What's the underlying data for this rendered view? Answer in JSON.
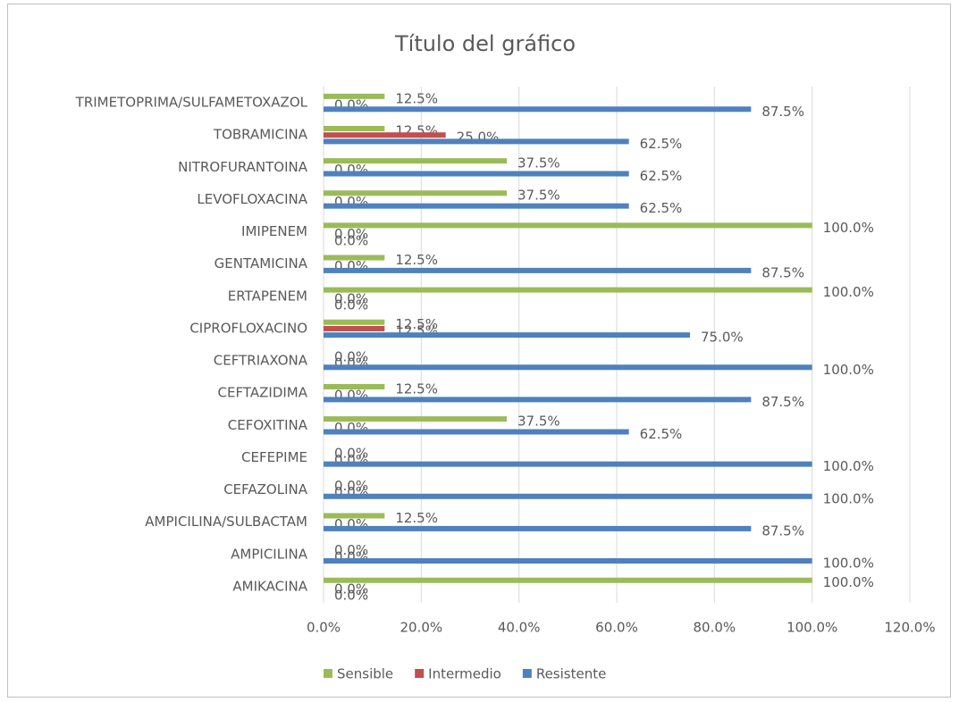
{
  "chart_data": {
    "type": "bar",
    "orientation": "horizontal",
    "title": "Título del gráfico",
    "categories": [
      "AMIKACINA",
      "AMPICILINA",
      "AMPICILINA/SULBACTAM",
      "CEFAZOLINA",
      "CEFEPIME",
      "CEFOXITINA",
      "CEFTAZIDIMA",
      "CEFTRIAXONA",
      "CIPROFLOXACINO",
      "ERTAPENEM",
      "GENTAMICINA",
      "IMIPENEM",
      "LEVOFLOXACINA",
      "NITROFURANTOINA",
      "TOBRAMICINA",
      "TRIMETOPRIMA/SULFAMETOXAZOL"
    ],
    "series": [
      {
        "name": "Sensible",
        "color": "#9bbb59",
        "values": [
          100,
          0,
          12.5,
          0,
          0,
          37.5,
          12.5,
          0,
          12.5,
          100,
          12.5,
          100,
          37.5,
          37.5,
          12.5,
          12.5
        ],
        "value_labels": [
          "100.0%",
          "0.0%",
          "12.5%",
          "0.0%",
          "0.0%",
          "37.5%",
          "12.5%",
          "0.0%",
          "12.5%",
          "100.0%",
          "12.5%",
          "100.0%",
          "37.5%",
          "37.5%",
          "12.5%",
          "12.5%"
        ]
      },
      {
        "name": "Intermedio",
        "color": "#c0504d",
        "values": [
          0,
          0,
          0,
          0,
          0,
          0,
          0,
          0,
          12.5,
          0,
          0,
          0,
          0,
          0,
          25,
          0
        ],
        "value_labels": [
          "0.0%",
          "0.0%",
          "0.0%",
          "0.0%",
          "0.0%",
          "0.0%",
          "0.0%",
          "0.0%",
          "12.5%",
          "0.0%",
          "0.0%",
          "0.0%",
          "0.0%",
          "0.0%",
          "25.0%",
          "0.0%"
        ]
      },
      {
        "name": "Resistente",
        "color": "#4f81bd",
        "values": [
          0,
          100,
          87.5,
          100,
          100,
          62.5,
          87.5,
          100,
          75,
          0,
          87.5,
          0,
          62.5,
          62.5,
          62.5,
          87.5
        ],
        "value_labels": [
          "0.0%",
          "100.0%",
          "87.5%",
          "100.0%",
          "100.0%",
          "62.5%",
          "87.5%",
          "100.0%",
          "75.0%",
          "0.0%",
          "87.5%",
          "0.0%",
          "62.5%",
          "62.5%",
          "62.5%",
          "87.5%"
        ]
      }
    ],
    "xlim": [
      0,
      120
    ],
    "xticks": [
      {
        "value": 0,
        "label": "0.0%"
      },
      {
        "value": 20,
        "label": "20.0%"
      },
      {
        "value": 40,
        "label": "40.0%"
      },
      {
        "value": 60,
        "label": "60.0%"
      },
      {
        "value": 80,
        "label": "80.0%"
      },
      {
        "value": 100,
        "label": "100.0%"
      },
      {
        "value": 120,
        "label": "120.0%"
      }
    ],
    "grid": true,
    "legend": "bottom"
  }
}
